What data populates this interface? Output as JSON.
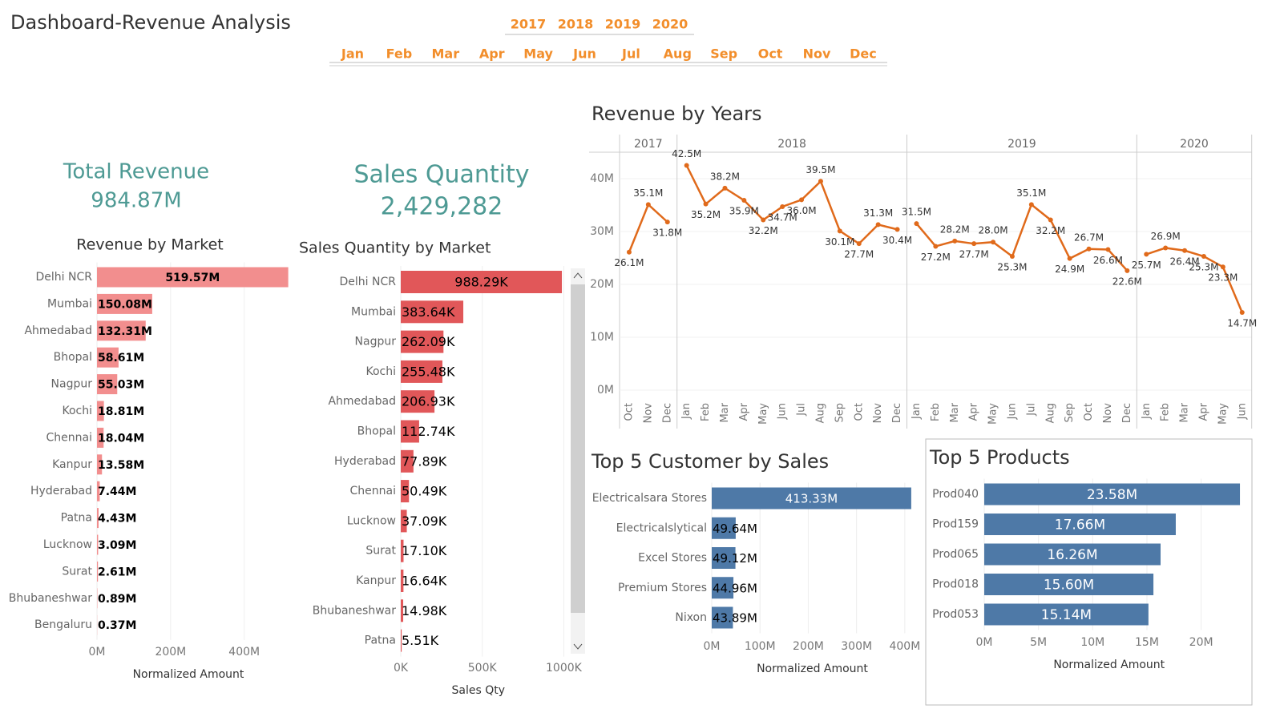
{
  "header": {
    "title": "Dashboard-Revenue Analysis",
    "years": [
      "2017",
      "2018",
      "2019",
      "2020"
    ],
    "months": [
      "Jan",
      "Feb",
      "Mar",
      "Apr",
      "May",
      "Jun",
      "Jul",
      "Aug",
      "Sep",
      "Oct",
      "Nov",
      "Dec"
    ]
  },
  "kpis": [
    {
      "label": "Total Revenue",
      "value": "984.87M"
    },
    {
      "label": "Sales Quantity",
      "value": "2,429,282"
    }
  ],
  "chart_data": [
    {
      "type": "bar",
      "orientation": "horizontal",
      "title": "Revenue by Market",
      "categories": [
        "Delhi NCR",
        "Mumbai",
        "Ahmedabad",
        "Bhopal",
        "Nagpur",
        "Kochi",
        "Chennai",
        "Kanpur",
        "Hyderabad",
        "Patna",
        "Lucknow",
        "Surat",
        "Bhubaneshwar",
        "Bengaluru"
      ],
      "values": [
        519.57,
        150.08,
        132.31,
        58.61,
        55.03,
        18.81,
        18.04,
        13.58,
        7.44,
        4.43,
        3.09,
        2.61,
        0.89,
        0.37
      ],
      "value_labels": [
        "519.57M",
        "150.08M",
        "132.31M",
        "58.61M",
        "55.03M",
        "18.81M",
        "18.04M",
        "13.58M",
        "7.44M",
        "4.43M",
        "3.09M",
        "2.61M",
        "0.89M",
        "0.37M"
      ],
      "color": "#f28e8e",
      "xlim": [
        0,
        540
      ],
      "xticks": [
        {
          "value": 0,
          "label": "0M"
        },
        {
          "value": 200,
          "label": "200M"
        },
        {
          "value": 400,
          "label": "400M"
        }
      ],
      "xlabel": "Normalized Amount"
    },
    {
      "type": "bar",
      "orientation": "horizontal",
      "title": "Sales Quantity by Market",
      "categories": [
        "Delhi NCR",
        "Mumbai",
        "Nagpur",
        "Kochi",
        "Ahmedabad",
        "Bhopal",
        "Hyderabad",
        "Chennai",
        "Lucknow",
        "Surat",
        "Kanpur",
        "Bhubaneshwar",
        "Patna"
      ],
      "values": [
        988.29,
        383.64,
        262.09,
        255.48,
        206.93,
        112.74,
        77.89,
        50.49,
        37.09,
        17.1,
        16.64,
        14.98,
        5.51
      ],
      "value_labels": [
        "988.29K",
        "383.64K",
        "262.09K",
        "255.48K",
        "206.93K",
        "112.74K",
        "77.89K",
        "50.49K",
        "37.09K",
        "17.10K",
        "16.64K",
        "14.98K",
        "5.51K"
      ],
      "color": "#e15759",
      "xlim": [
        0,
        1050
      ],
      "xticks": [
        {
          "value": 0,
          "label": "0K"
        },
        {
          "value": 500,
          "label": "500K"
        },
        {
          "value": 1000,
          "label": "1000K"
        }
      ],
      "xlabel": "Sales Qty"
    },
    {
      "type": "line",
      "title": "Revenue by Years",
      "color": "#e06a1b",
      "grid": true,
      "ylim": [
        0,
        45
      ],
      "yticks": [
        {
          "value": 0,
          "label": "0M"
        },
        {
          "value": 10,
          "label": "10M"
        },
        {
          "value": 20,
          "label": "20M"
        },
        {
          "value": 30,
          "label": "30M"
        },
        {
          "value": 40,
          "label": "40M"
        }
      ],
      "panels": [
        {
          "name": "2017",
          "categories": [
            "Oct",
            "Nov",
            "Dec"
          ],
          "values": [
            26.1,
            35.1,
            31.8
          ],
          "value_labels": [
            "26.1M",
            "35.1M",
            "31.8M"
          ]
        },
        {
          "name": "2018",
          "categories": [
            "Jan",
            "Feb",
            "Mar",
            "Apr",
            "May",
            "Jun",
            "Jul",
            "Aug",
            "Sep",
            "Oct",
            "Nov",
            "Dec"
          ],
          "values": [
            42.5,
            35.2,
            38.2,
            35.9,
            32.2,
            34.7,
            36.0,
            39.5,
            30.1,
            27.7,
            31.3,
            30.4
          ],
          "value_labels": [
            "42.5M",
            "35.2M",
            "38.2M",
            "35.9M",
            "32.2M",
            "34.7M",
            "36.0M",
            "39.5M",
            "30.1M",
            "27.7M",
            "31.3M",
            "30.4M"
          ]
        },
        {
          "name": "2019",
          "categories": [
            "Jan",
            "Feb",
            "Mar",
            "Apr",
            "May",
            "Jun",
            "Jul",
            "Aug",
            "Sep",
            "Oct",
            "Nov",
            "Dec"
          ],
          "values": [
            31.5,
            27.2,
            28.2,
            27.7,
            28.0,
            25.3,
            35.1,
            32.2,
            24.9,
            26.7,
            26.6,
            22.6
          ],
          "value_labels": [
            "31.5M",
            "27.2M",
            "28.2M",
            "27.7M",
            "28.0M",
            "25.3M",
            "35.1M",
            "32.2M",
            "24.9M",
            "26.7M",
            "26.6M",
            "22.6M"
          ]
        },
        {
          "name": "2020",
          "categories": [
            "Jan",
            "Feb",
            "Mar",
            "Apr",
            "May",
            "Jun"
          ],
          "values": [
            25.7,
            26.9,
            26.4,
            25.3,
            23.3,
            14.7
          ],
          "value_labels": [
            "25.7M",
            "26.9M",
            "26.4M",
            "25.3M",
            "23.3M",
            "14.7M"
          ]
        }
      ]
    },
    {
      "type": "bar",
      "orientation": "horizontal",
      "title": "Top 5 Customer by Sales",
      "categories": [
        "Electricalsara Stores",
        "Electricalslytical",
        "Excel Stores",
        "Premium Stores",
        "Nixon"
      ],
      "values": [
        413.33,
        49.64,
        49.12,
        44.96,
        43.89
      ],
      "value_labels": [
        "413.33M",
        "49.64M",
        "49.12M",
        "44.96M",
        "43.89M"
      ],
      "color": "#4e79a7",
      "xlim": [
        0,
        450
      ],
      "xticks": [
        {
          "value": 0,
          "label": "0M"
        },
        {
          "value": 100,
          "label": "100M"
        },
        {
          "value": 200,
          "label": "200M"
        },
        {
          "value": 300,
          "label": "300M"
        },
        {
          "value": 400,
          "label": "400M"
        }
      ],
      "xlabel": "Normalized Amount"
    },
    {
      "type": "bar",
      "orientation": "horizontal",
      "title": "Top 5 Products",
      "categories": [
        "Prod040",
        "Prod159",
        "Prod065",
        "Prod018",
        "Prod053"
      ],
      "values": [
        23.58,
        17.66,
        16.26,
        15.6,
        15.14
      ],
      "value_labels": [
        "23.58M",
        "17.66M",
        "16.26M",
        "15.60M",
        "15.14M"
      ],
      "color": "#4e79a7",
      "xlim": [
        0,
        24.5
      ],
      "xticks": [
        {
          "value": 0,
          "label": "0M"
        },
        {
          "value": 5,
          "label": "5M"
        },
        {
          "value": 10,
          "label": "10M"
        },
        {
          "value": 15,
          "label": "15M"
        },
        {
          "value": 20,
          "label": "20M"
        }
      ],
      "xlabel": "Normalized Amount"
    }
  ]
}
